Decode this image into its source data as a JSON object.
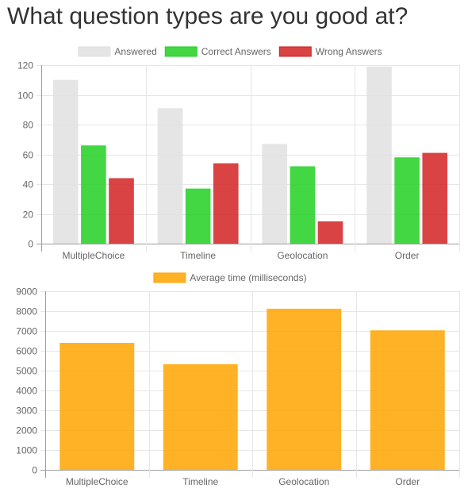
{
  "page": {
    "title": "What question types are you good at?"
  },
  "chart_data": [
    {
      "type": "bar",
      "categories": [
        "MultipleChoice",
        "Timeline",
        "Geolocation",
        "Order"
      ],
      "series": [
        {
          "name": "Answered",
          "values": [
            110,
            91,
            67,
            119
          ],
          "color": "#e0e0e0"
        },
        {
          "name": "Correct Answers",
          "values": [
            66,
            37,
            52,
            58
          ],
          "color": "#22d022"
        },
        {
          "name": "Wrong Answers",
          "values": [
            44,
            54,
            15,
            61
          ],
          "color": "#d22222"
        }
      ],
      "ylim": [
        0,
        120
      ],
      "yticks": [
        0,
        20,
        40,
        60,
        80,
        100,
        120
      ],
      "grid": true,
      "legend": "top"
    },
    {
      "type": "bar",
      "categories": [
        "MultipleChoice",
        "Timeline",
        "Geolocation",
        "Order"
      ],
      "series": [
        {
          "name": "Average time (milliseconds)",
          "values": [
            6400,
            5320,
            8120,
            7030
          ],
          "color": "#ffa500"
        }
      ],
      "ylim": [
        0,
        9000
      ],
      "yticks": [
        0,
        1000,
        2000,
        3000,
        4000,
        5000,
        6000,
        7000,
        8000,
        9000
      ],
      "grid": true,
      "legend": "top"
    }
  ]
}
